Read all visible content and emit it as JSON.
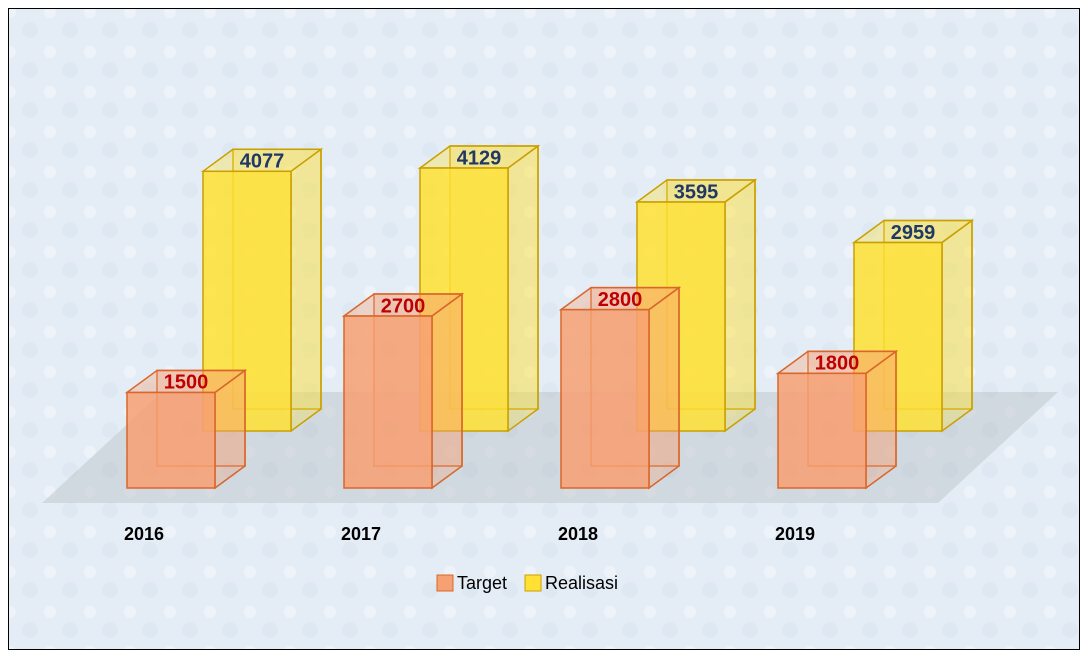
{
  "chart_data": {
    "type": "bar3d",
    "categories": [
      "2016",
      "2017",
      "2018",
      "2019"
    ],
    "series": [
      {
        "name": "Target",
        "color": "#f7a072",
        "label_color": "#c00000",
        "values": [
          1500,
          2700,
          2800,
          1800
        ]
      },
      {
        "name": "Realisasi",
        "color": "#ffe033",
        "label_color": "#1f3864",
        "values": [
          4077,
          4129,
          3595,
          2959
        ]
      }
    ],
    "legend": "bottom"
  }
}
